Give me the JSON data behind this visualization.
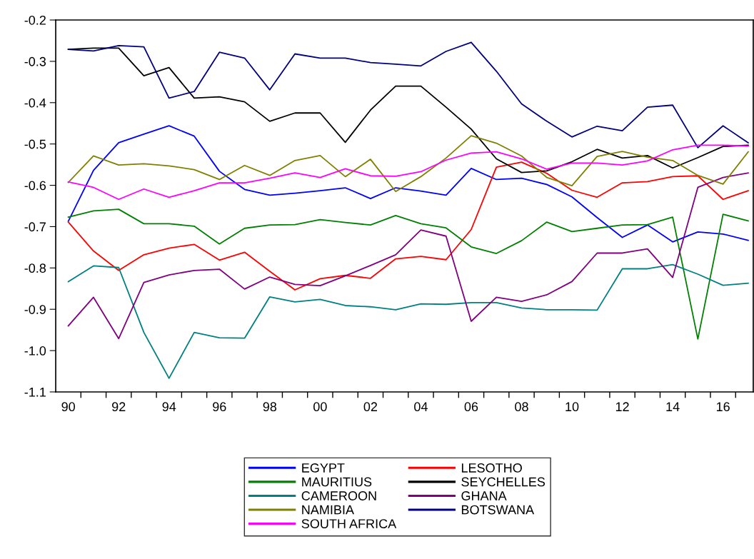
{
  "chart_data": {
    "type": "line",
    "x": [
      1990,
      1991,
      1992,
      1993,
      1994,
      1995,
      1996,
      1997,
      1998,
      1999,
      2000,
      2001,
      2002,
      2003,
      2004,
      2005,
      2006,
      2007,
      2008,
      2009,
      2010,
      2011,
      2012,
      2013,
      2014,
      2015,
      2016,
      2017
    ],
    "xlim": [
      1989.5,
      2017.2
    ],
    "xticks": [
      {
        "value": 1990,
        "label": "90"
      },
      {
        "value": 1992,
        "label": "92"
      },
      {
        "value": 1994,
        "label": "94"
      },
      {
        "value": 1996,
        "label": "96"
      },
      {
        "value": 1998,
        "label": "98"
      },
      {
        "value": 2000,
        "label": "00"
      },
      {
        "value": 2002,
        "label": "02"
      },
      {
        "value": 2004,
        "label": "04"
      },
      {
        "value": 2006,
        "label": "06"
      },
      {
        "value": 2008,
        "label": "08"
      },
      {
        "value": 2010,
        "label": "10"
      },
      {
        "value": 2012,
        "label": "12"
      },
      {
        "value": 2014,
        "label": "14"
      },
      {
        "value": 2016,
        "label": "16"
      },
      {
        "value": 1990.5,
        "label": null
      },
      {
        "value": 1991.5,
        "label": null
      },
      {
        "value": 1992.5,
        "label": null
      },
      {
        "value": 1993.5,
        "label": null
      },
      {
        "value": 1994.5,
        "label": null
      },
      {
        "value": 1995.5,
        "label": null
      },
      {
        "value": 1996.5,
        "label": null
      },
      {
        "value": 1997.5,
        "label": null
      },
      {
        "value": 1998.5,
        "label": null
      },
      {
        "value": 1999.5,
        "label": null
      },
      {
        "value": 2000.5,
        "label": null
      },
      {
        "value": 2001.5,
        "label": null
      },
      {
        "value": 2002.5,
        "label": null
      },
      {
        "value": 2003.5,
        "label": null
      },
      {
        "value": 2004.5,
        "label": null
      },
      {
        "value": 2005.5,
        "label": null
      },
      {
        "value": 2006.5,
        "label": null
      },
      {
        "value": 2007.5,
        "label": null
      },
      {
        "value": 2008.5,
        "label": null
      },
      {
        "value": 2009.5,
        "label": null
      },
      {
        "value": 2010.5,
        "label": null
      },
      {
        "value": 2011.5,
        "label": null
      },
      {
        "value": 2012.5,
        "label": null
      },
      {
        "value": 2013.5,
        "label": null
      },
      {
        "value": 2014.5,
        "label": null
      },
      {
        "value": 2015.5,
        "label": null
      },
      {
        "value": 2016.5,
        "label": null
      }
    ],
    "ylim": [
      -1.1,
      -0.2
    ],
    "yticks": [
      -1.1,
      {
        "value": -1.0,
        "label": "-1.0"
      },
      -0.9,
      -0.8,
      -0.7,
      -0.6,
      -0.5,
      -0.4,
      -0.3,
      -0.2
    ],
    "grid": false,
    "legend": "bottom",
    "marker": "none",
    "line_style": "solid",
    "series": [
      {
        "name": "EGYPT",
        "color": "#0000ff",
        "values": [
          -0.687,
          -0.564,
          -0.497,
          -0.476,
          -0.456,
          -0.481,
          -0.566,
          -0.61,
          -0.624,
          -0.619,
          -0.613,
          -0.606,
          -0.632,
          -0.606,
          -0.614,
          -0.624,
          -0.559,
          -0.586,
          -0.583,
          -0.598,
          -0.628,
          -0.678,
          -0.726,
          -0.696,
          -0.737,
          -0.713,
          -0.718,
          -0.733
        ]
      },
      {
        "name": "LESOTHO",
        "color": "#ff0000",
        "values": [
          -0.689,
          -0.759,
          -0.806,
          -0.768,
          -0.752,
          -0.743,
          -0.781,
          -0.762,
          -0.808,
          -0.853,
          -0.826,
          -0.818,
          -0.825,
          -0.778,
          -0.772,
          -0.78,
          -0.707,
          -0.556,
          -0.544,
          -0.571,
          -0.612,
          -0.629,
          -0.594,
          -0.591,
          -0.579,
          -0.577,
          -0.634,
          -0.613
        ]
      },
      {
        "name": "MAURITIUS",
        "color": "#008000",
        "values": [
          -0.677,
          -0.662,
          -0.658,
          -0.693,
          -0.693,
          -0.699,
          -0.742,
          -0.704,
          -0.696,
          -0.695,
          -0.683,
          -0.69,
          -0.696,
          -0.673,
          -0.693,
          -0.703,
          -0.749,
          -0.765,
          -0.734,
          -0.689,
          -0.712,
          -0.704,
          -0.696,
          -0.695,
          -0.677,
          -0.972,
          -0.67,
          -0.686
        ]
      },
      {
        "name": "SEYCHELLES",
        "color": "#000000",
        "values": [
          -0.271,
          -0.268,
          -0.268,
          -0.335,
          -0.315,
          -0.389,
          -0.386,
          -0.398,
          -0.445,
          -0.425,
          -0.425,
          -0.496,
          -0.418,
          -0.36,
          -0.36,
          -0.411,
          -0.464,
          -0.536,
          -0.569,
          -0.565,
          -0.543,
          -0.513,
          -0.534,
          -0.528,
          -0.558,
          -0.533,
          -0.506,
          -0.503
        ]
      },
      {
        "name": "CAMEROON",
        "color": "#008080",
        "values": [
          -0.833,
          -0.795,
          -0.799,
          -0.956,
          -1.067,
          -0.956,
          -0.969,
          -0.97,
          -0.87,
          -0.882,
          -0.876,
          -0.891,
          -0.894,
          -0.901,
          -0.887,
          -0.888,
          -0.884,
          -0.884,
          -0.897,
          -0.901,
          -0.901,
          -0.902,
          -0.802,
          -0.802,
          -0.792,
          -0.815,
          -0.842,
          -0.837
        ]
      },
      {
        "name": "GHANA",
        "color": "#800080",
        "values": [
          -0.94,
          -0.871,
          -0.971,
          -0.835,
          -0.817,
          -0.806,
          -0.803,
          -0.851,
          -0.822,
          -0.84,
          -0.843,
          -0.819,
          -0.794,
          -0.768,
          -0.708,
          -0.723,
          -0.929,
          -0.871,
          -0.881,
          -0.865,
          -0.833,
          -0.764,
          -0.764,
          -0.754,
          -0.823,
          -0.605,
          -0.581,
          -0.57
        ]
      },
      {
        "name": "NAMIBIA",
        "color": "#808000",
        "values": [
          -0.593,
          -0.529,
          -0.551,
          -0.548,
          -0.553,
          -0.562,
          -0.586,
          -0.552,
          -0.576,
          -0.54,
          -0.528,
          -0.579,
          -0.537,
          -0.615,
          -0.579,
          -0.534,
          -0.48,
          -0.498,
          -0.529,
          -0.581,
          -0.601,
          -0.53,
          -0.518,
          -0.532,
          -0.54,
          -0.576,
          -0.597,
          -0.519
        ]
      },
      {
        "name": "BOTSWANA",
        "color": "#000080",
        "values": [
          -0.271,
          -0.275,
          -0.262,
          -0.265,
          -0.389,
          -0.373,
          -0.278,
          -0.292,
          -0.369,
          -0.282,
          -0.292,
          -0.292,
          -0.303,
          -0.307,
          -0.311,
          -0.276,
          -0.254,
          -0.324,
          -0.403,
          -0.445,
          -0.483,
          -0.457,
          -0.468,
          -0.411,
          -0.406,
          -0.509,
          -0.456,
          -0.497
        ]
      },
      {
        "name": "SOUTH AFRICA",
        "color": "#ff00ff",
        "values": [
          -0.592,
          -0.605,
          -0.634,
          -0.609,
          -0.629,
          -0.613,
          -0.594,
          -0.594,
          -0.583,
          -0.57,
          -0.581,
          -0.56,
          -0.577,
          -0.578,
          -0.567,
          -0.539,
          -0.522,
          -0.519,
          -0.536,
          -0.561,
          -0.546,
          -0.546,
          -0.551,
          -0.541,
          -0.514,
          -0.503,
          -0.503,
          -0.505
        ]
      }
    ]
  }
}
